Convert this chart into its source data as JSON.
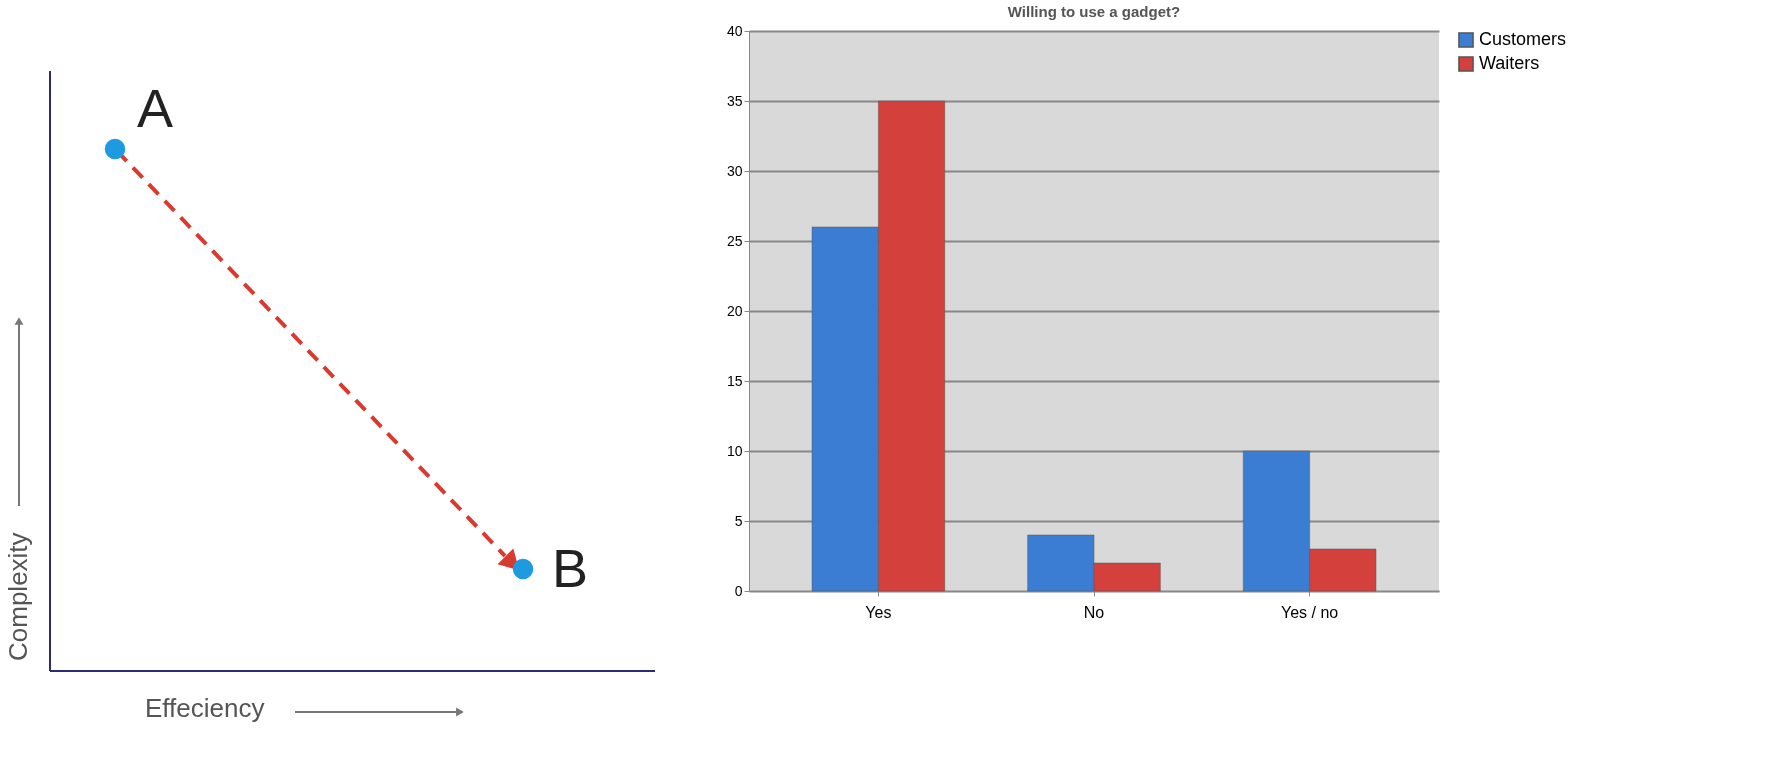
{
  "chart_data": [
    {
      "type": "other",
      "xlabel": "Effeciency",
      "ylabel": "Complexity",
      "annotations": [
        "A",
        "B"
      ]
    },
    {
      "type": "bar",
      "title": "Willing to use a gadget?",
      "categories": [
        "Yes",
        "No",
        "Yes / no"
      ],
      "series": [
        {
          "name": "Customers",
          "color": "#3c7dd4",
          "values": [
            26,
            4,
            10
          ]
        },
        {
          "name": "Waiters",
          "color": "#d4403c",
          "values": [
            35,
            2,
            3
          ]
        }
      ],
      "ylim": [
        0,
        40
      ],
      "yticks": [
        0,
        5,
        10,
        15,
        20,
        25,
        30,
        35,
        40
      ],
      "grid": "y",
      "legend": "right"
    }
  ]
}
